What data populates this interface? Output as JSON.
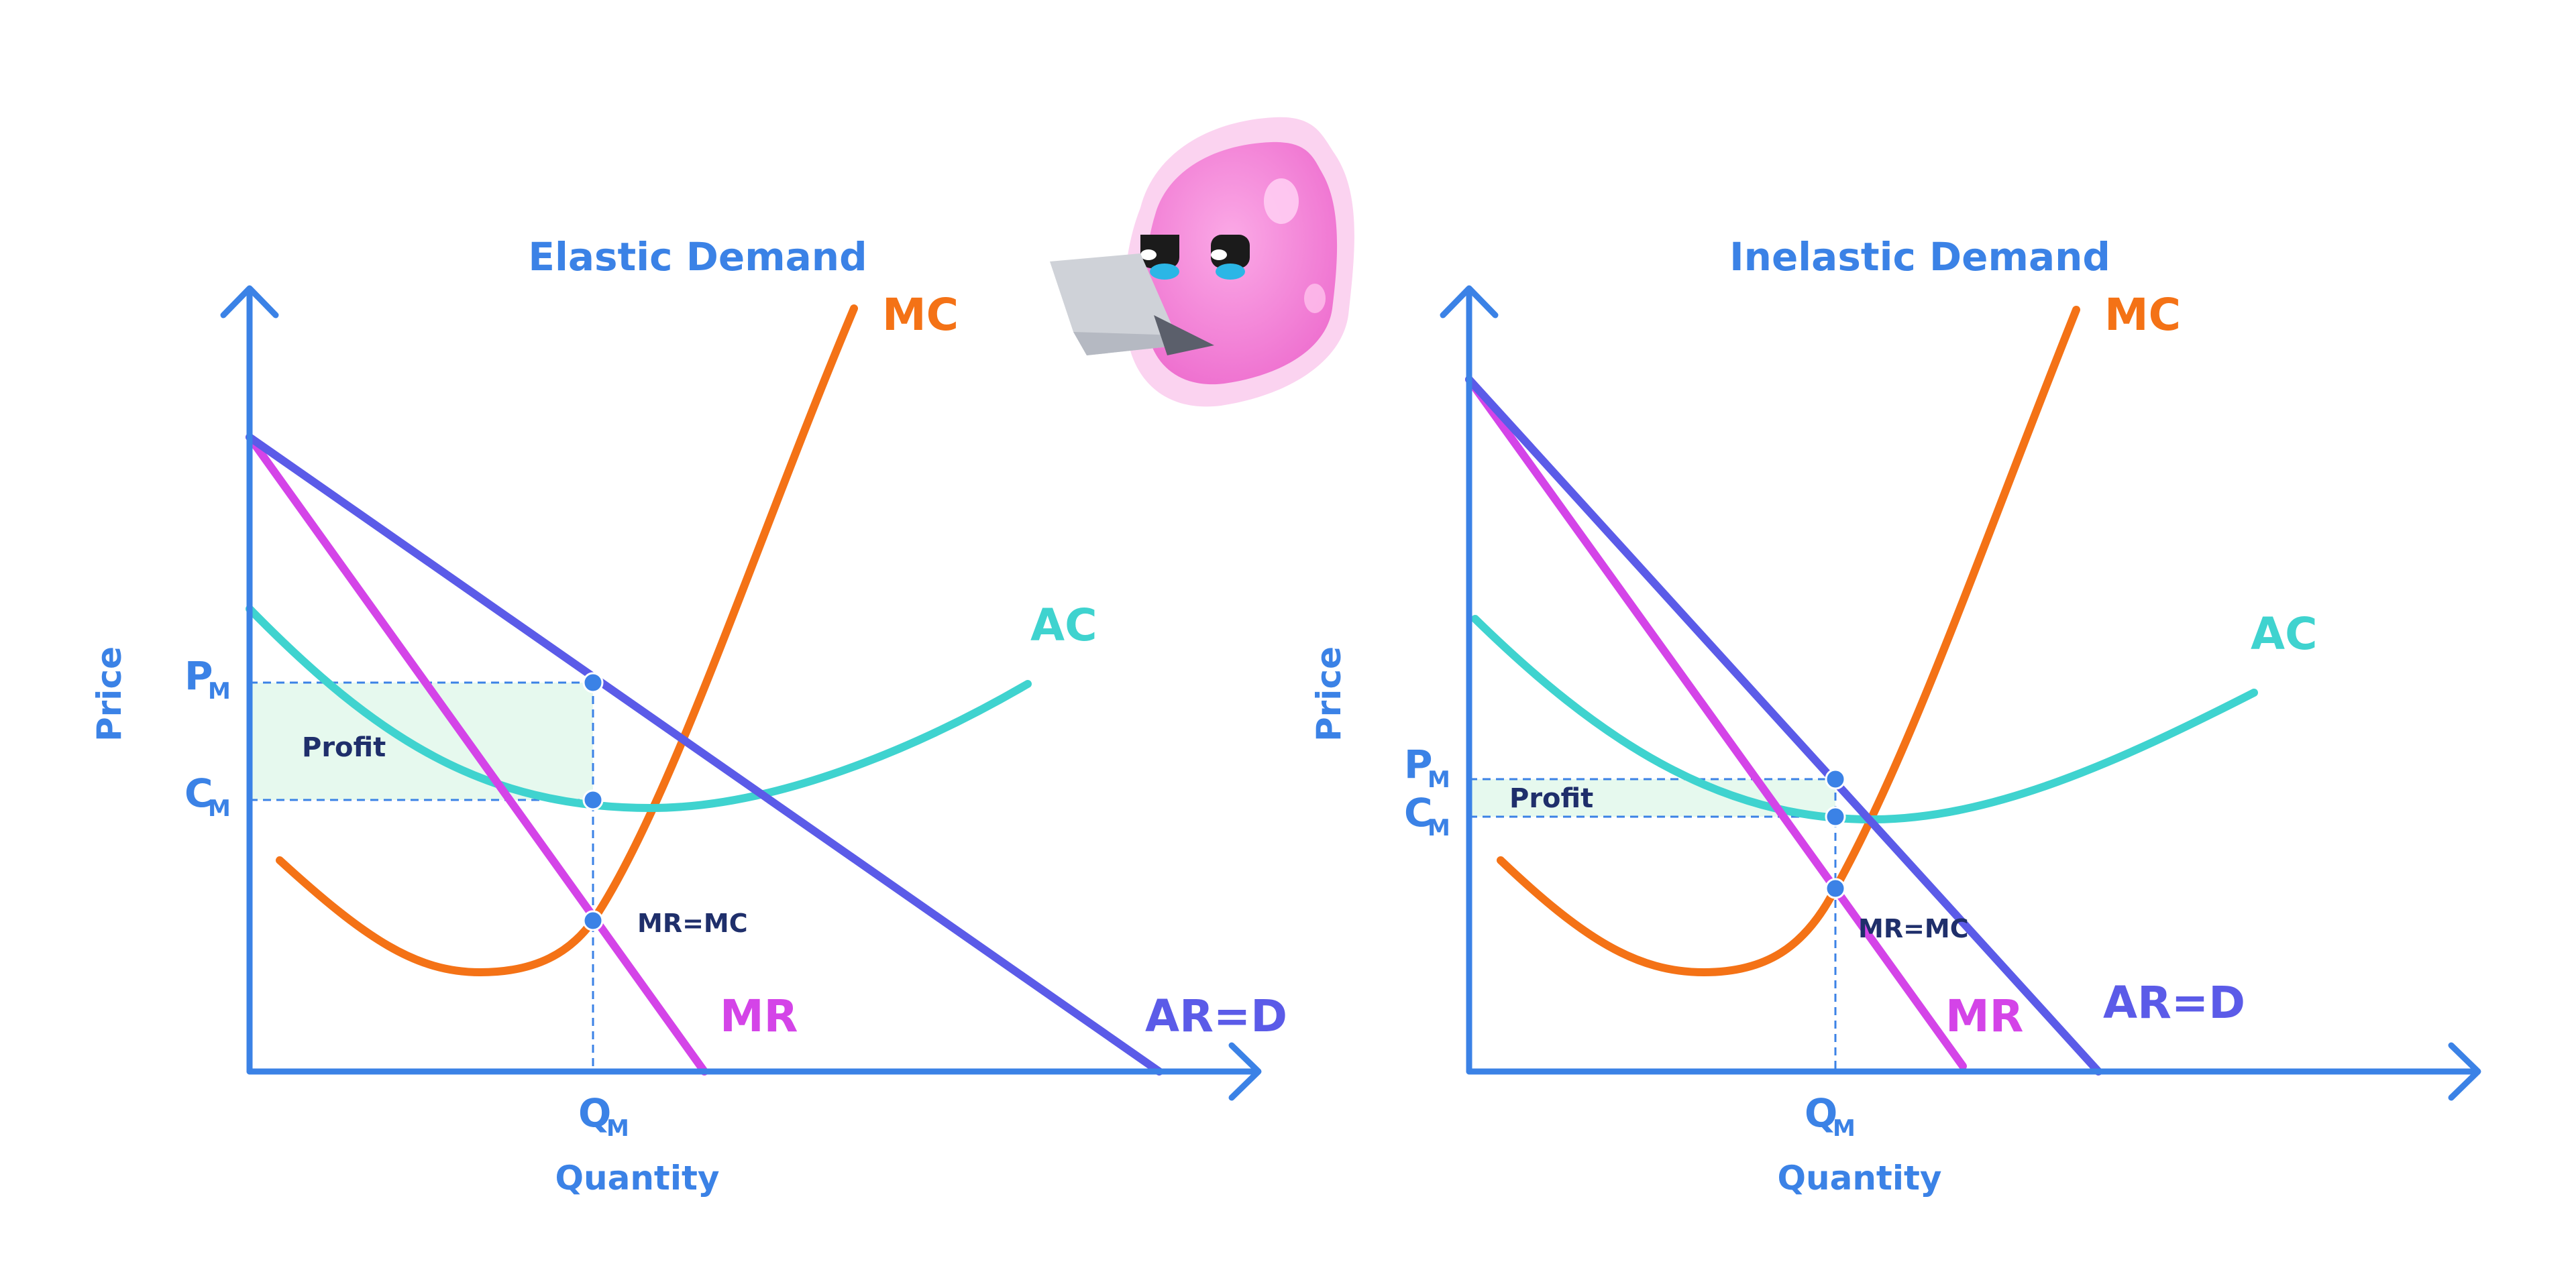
{
  "diagrams": [
    {
      "title": "Elastic Demand",
      "y_axis_label": "Price",
      "x_axis_label": "Quantity",
      "price_label": "P",
      "cost_label": "C",
      "quantity_label": "Q",
      "subscript": "M",
      "profit_label": "Profit",
      "intersection_label": "MR=MC",
      "curve_labels": {
        "mc": "MC",
        "ac": "AC",
        "mr": "MR",
        "demand": "AR=D"
      }
    },
    {
      "title": "Inelastic Demand",
      "y_axis_label": "Price",
      "x_axis_label": "Quantity",
      "price_label": "P",
      "cost_label": "C",
      "quantity_label": "Q",
      "subscript": "M",
      "profit_label": "Profit",
      "intersection_label": "MR=MC",
      "curve_labels": {
        "mc": "MC",
        "ac": "AC",
        "mr": "MR",
        "demand": "AR=D"
      }
    }
  ],
  "colors": {
    "axis": "#3b82e6",
    "mc": "#f47216",
    "ac": "#3fd3cf",
    "mr": "#d444e8",
    "demand": "#5b5be8",
    "profit_fill": "#e6f9ee",
    "guide": "#3b82e6",
    "point": "#3b82e6",
    "mascot": "#f48fd8"
  }
}
